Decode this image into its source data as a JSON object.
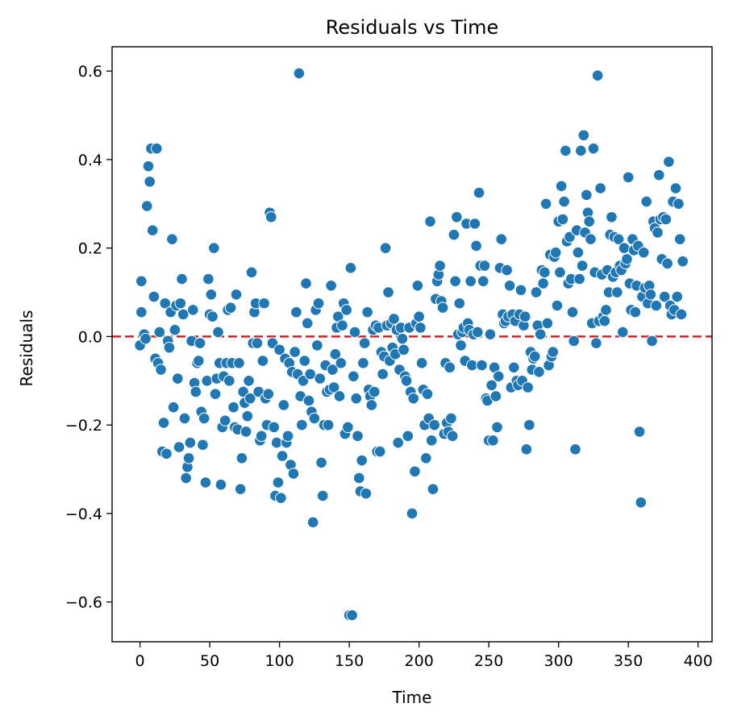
{
  "chart_data": {
    "type": "scatter",
    "title": "Residuals vs Time",
    "xlabel": "Time",
    "ylabel": "Residuals",
    "xlim": [
      -20,
      410
    ],
    "ylim": [
      -0.69,
      0.655
    ],
    "xticks": [
      0,
      50,
      100,
      150,
      200,
      250,
      300,
      350,
      400
    ],
    "xtick_labels": [
      "0",
      "50",
      "100",
      "150",
      "200",
      "250",
      "300",
      "350",
      "400"
    ],
    "yticks": [
      -0.6,
      -0.4,
      -0.2,
      0.0,
      0.2,
      0.4,
      0.6
    ],
    "ytick_labels": [
      "−0.6",
      "−0.4",
      "−0.2",
      "0.0",
      "0.2",
      "0.4",
      "0.6"
    ],
    "grid": false,
    "point_color": "#1f77b4",
    "reference_line": {
      "y": 0,
      "color": "#e31a1c",
      "style": "dashed"
    },
    "points": [
      [
        0,
        -0.02
      ],
      [
        1,
        0.055
      ],
      [
        1,
        0.125
      ],
      [
        3,
        0.005
      ],
      [
        4,
        -0.005
      ],
      [
        5,
        0.295
      ],
      [
        6,
        0.385
      ],
      [
        7,
        0.35
      ],
      [
        8,
        0.425
      ],
      [
        9,
        0.24
      ],
      [
        10,
        0.09
      ],
      [
        11,
        -0.05
      ],
      [
        12,
        0.425
      ],
      [
        13,
        -0.06
      ],
      [
        14,
        0.01
      ],
      [
        15,
        -0.075
      ],
      [
        16,
        -0.26
      ],
      [
        17,
        -0.195
      ],
      [
        18,
        0.075
      ],
      [
        19,
        -0.265
      ],
      [
        20,
        -0.01
      ],
      [
        21,
        -0.025
      ],
      [
        22,
        0.055
      ],
      [
        23,
        0.22
      ],
      [
        24,
        -0.16
      ],
      [
        25,
        0.015
      ],
      [
        26,
        0.07
      ],
      [
        27,
        -0.095
      ],
      [
        28,
        -0.25
      ],
      [
        29,
        0.075
      ],
      [
        30,
        0.13
      ],
      [
        31,
        0.05
      ],
      [
        32,
        -0.185
      ],
      [
        33,
        -0.32
      ],
      [
        34,
        -0.295
      ],
      [
        35,
        -0.275
      ],
      [
        36,
        -0.24
      ],
      [
        37,
        -0.01
      ],
      [
        38,
        0.06
      ],
      [
        39,
        -0.105
      ],
      [
        40,
        -0.125
      ],
      [
        41,
        -0.06
      ],
      [
        42,
        -0.055
      ],
      [
        43,
        -0.015
      ],
      [
        44,
        -0.17
      ],
      [
        45,
        -0.245
      ],
      [
        46,
        -0.185
      ],
      [
        47,
        -0.33
      ],
      [
        48,
        -0.1
      ],
      [
        49,
        0.13
      ],
      [
        50,
        0.05
      ],
      [
        51,
        0.095
      ],
      [
        52,
        0.045
      ],
      [
        53,
        0.2
      ],
      [
        54,
        -0.13
      ],
      [
        55,
        -0.095
      ],
      [
        56,
        0.01
      ],
      [
        57,
        -0.06
      ],
      [
        58,
        -0.335
      ],
      [
        59,
        -0.205
      ],
      [
        60,
        -0.09
      ],
      [
        61,
        -0.19
      ],
      [
        62,
        -0.06
      ],
      [
        63,
        0.06
      ],
      [
        64,
        -0.1
      ],
      [
        65,
        0.065
      ],
      [
        66,
        -0.06
      ],
      [
        67,
        -0.16
      ],
      [
        68,
        -0.205
      ],
      [
        69,
        0.095
      ],
      [
        70,
        -0.21
      ],
      [
        71,
        -0.06
      ],
      [
        72,
        -0.345
      ],
      [
        73,
        -0.275
      ],
      [
        74,
        -0.125
      ],
      [
        75,
        -0.15
      ],
      [
        76,
        -0.215
      ],
      [
        77,
        -0.18
      ],
      [
        78,
        -0.1
      ],
      [
        79,
        -0.14
      ],
      [
        80,
        0.145
      ],
      [
        81,
        -0.015
      ],
      [
        82,
        0.055
      ],
      [
        83,
        0.075
      ],
      [
        84,
        -0.015
      ],
      [
        85,
        -0.125
      ],
      [
        86,
        -0.235
      ],
      [
        87,
        -0.225
      ],
      [
        88,
        -0.055
      ],
      [
        89,
        0.075
      ],
      [
        90,
        -0.14
      ],
      [
        91,
        -0.2
      ],
      [
        92,
        -0.13
      ],
      [
        93,
        0.28
      ],
      [
        94,
        0.27
      ],
      [
        95,
        -0.015
      ],
      [
        96,
        -0.205
      ],
      [
        97,
        -0.36
      ],
      [
        98,
        -0.24
      ],
      [
        99,
        -0.33
      ],
      [
        100,
        -0.03
      ],
      [
        101,
        -0.365
      ],
      [
        102,
        -0.27
      ],
      [
        103,
        -0.155
      ],
      [
        104,
        -0.05
      ],
      [
        105,
        -0.24
      ],
      [
        106,
        -0.225
      ],
      [
        107,
        -0.06
      ],
      [
        108,
        -0.29
      ],
      [
        109,
        -0.08
      ],
      [
        110,
        -0.31
      ],
      [
        111,
        -0.035
      ],
      [
        112,
        0.055
      ],
      [
        113,
        -0.085
      ],
      [
        114,
        0.595
      ],
      [
        115,
        -0.135
      ],
      [
        116,
        -0.2
      ],
      [
        117,
        -0.1
      ],
      [
        118,
        -0.055
      ],
      [
        119,
        0.12
      ],
      [
        120,
        0.03
      ],
      [
        121,
        -0.145
      ],
      [
        122,
        -0.085
      ],
      [
        123,
        -0.17
      ],
      [
        124,
        -0.42
      ],
      [
        125,
        -0.185
      ],
      [
        126,
        0.06
      ],
      [
        127,
        -0.02
      ],
      [
        128,
        0.075
      ],
      [
        129,
        -0.095
      ],
      [
        130,
        -0.285
      ],
      [
        131,
        -0.36
      ],
      [
        132,
        -0.2
      ],
      [
        133,
        -0.065
      ],
      [
        134,
        -0.125
      ],
      [
        135,
        -0.2
      ],
      [
        136,
        -0.12
      ],
      [
        137,
        0.115
      ],
      [
        138,
        -0.075
      ],
      [
        139,
        -0.115
      ],
      [
        140,
        -0.04
      ],
      [
        141,
        0.02
      ],
      [
        142,
        0.045
      ],
      [
        143,
        -0.135
      ],
      [
        144,
        -0.06
      ],
      [
        145,
        0.025
      ],
      [
        146,
        0.075
      ],
      [
        147,
        -0.22
      ],
      [
        148,
        0.06
      ],
      [
        149,
        -0.205
      ],
      [
        150,
        -0.63
      ],
      [
        151,
        0.155
      ],
      [
        152,
        -0.63
      ],
      [
        153,
        -0.09
      ],
      [
        154,
        0.01
      ],
      [
        155,
        -0.14
      ],
      [
        156,
        -0.225
      ],
      [
        157,
        -0.32
      ],
      [
        158,
        -0.35
      ],
      [
        159,
        -0.28
      ],
      [
        160,
        -0.06
      ],
      [
        161,
        -0.015
      ],
      [
        162,
        -0.355
      ],
      [
        163,
        0.055
      ],
      [
        164,
        -0.12
      ],
      [
        165,
        -0.135
      ],
      [
        166,
        -0.155
      ],
      [
        167,
        0.015
      ],
      [
        168,
        -0.125
      ],
      [
        169,
        0.025
      ],
      [
        170,
        -0.26
      ],
      [
        171,
        0.02
      ],
      [
        172,
        -0.26
      ],
      [
        173,
        -0.035
      ],
      [
        174,
        -0.085
      ],
      [
        175,
        -0.045
      ],
      [
        176,
        0.2
      ],
      [
        177,
        0.025
      ],
      [
        178,
        0.1
      ],
      [
        179,
        -0.055
      ],
      [
        180,
        0.03
      ],
      [
        181,
        -0.025
      ],
      [
        182,
        0.04
      ],
      [
        183,
        -0.04
      ],
      [
        184,
        0.015
      ],
      [
        185,
        -0.24
      ],
      [
        186,
        -0.075
      ],
      [
        187,
        0.02
      ],
      [
        188,
        -0.005
      ],
      [
        189,
        -0.03
      ],
      [
        190,
        -0.09
      ],
      [
        191,
        -0.1
      ],
      [
        192,
        -0.225
      ],
      [
        193,
        0.02
      ],
      [
        194,
        -0.125
      ],
      [
        195,
        -0.4
      ],
      [
        196,
        -0.14
      ],
      [
        197,
        -0.305
      ],
      [
        198,
        0.03
      ],
      [
        199,
        0.115
      ],
      [
        200,
        0.045
      ],
      [
        201,
        0.02
      ],
      [
        202,
        -0.06
      ],
      [
        203,
        -0.12
      ],
      [
        204,
        -0.2
      ],
      [
        205,
        -0.275
      ],
      [
        206,
        -0.13
      ],
      [
        207,
        -0.185
      ],
      [
        208,
        0.26
      ],
      [
        209,
        -0.235
      ],
      [
        210,
        -0.345
      ],
      [
        211,
        -0.2
      ],
      [
        212,
        0.085
      ],
      [
        213,
        0.125
      ],
      [
        214,
        0.14
      ],
      [
        215,
        0.16
      ],
      [
        216,
        0.08
      ],
      [
        217,
        0.065
      ],
      [
        218,
        -0.22
      ],
      [
        219,
        -0.06
      ],
      [
        220,
        -0.195
      ],
      [
        221,
        -0.215
      ],
      [
        222,
        -0.07
      ],
      [
        223,
        -0.185
      ],
      [
        224,
        -0.225
      ],
      [
        225,
        0.23
      ],
      [
        226,
        0.125
      ],
      [
        227,
        0.27
      ],
      [
        228,
        0.005
      ],
      [
        229,
        0.075
      ],
      [
        230,
        -0.02
      ],
      [
        231,
        0.01
      ],
      [
        232,
        0.02
      ],
      [
        233,
        -0.055
      ],
      [
        234,
        0.255
      ],
      [
        235,
        0.03
      ],
      [
        236,
        0.015
      ],
      [
        237,
        0.125
      ],
      [
        238,
        -0.065
      ],
      [
        239,
        0.005
      ],
      [
        240,
        0.255
      ],
      [
        241,
        0.205
      ],
      [
        242,
        0.01
      ],
      [
        243,
        0.325
      ],
      [
        244,
        0.16
      ],
      [
        245,
        -0.065
      ],
      [
        246,
        0.125
      ],
      [
        247,
        0.16
      ],
      [
        248,
        -0.14
      ],
      [
        249,
        -0.145
      ],
      [
        250,
        -0.235
      ],
      [
        251,
        0.005
      ],
      [
        252,
        -0.11
      ],
      [
        253,
        -0.235
      ],
      [
        254,
        -0.07
      ],
      [
        255,
        -0.135
      ],
      [
        256,
        -0.205
      ],
      [
        257,
        -0.09
      ],
      [
        258,
        0.155
      ],
      [
        259,
        0.22
      ],
      [
        260,
        0.05
      ],
      [
        261,
        0.03
      ],
      [
        262,
        0.035
      ],
      [
        263,
        0.15
      ],
      [
        264,
        0.045
      ],
      [
        265,
        0.115
      ],
      [
        266,
        -0.115
      ],
      [
        267,
        0.05
      ],
      [
        268,
        -0.07
      ],
      [
        269,
        0.035
      ],
      [
        270,
        -0.1
      ],
      [
        271,
        -0.11
      ],
      [
        272,
        0.05
      ],
      [
        273,
        0.105
      ],
      [
        274,
        -0.1
      ],
      [
        275,
        0.025
      ],
      [
        276,
        0.045
      ],
      [
        277,
        -0.255
      ],
      [
        278,
        -0.115
      ],
      [
        279,
        -0.2
      ],
      [
        280,
        -0.035
      ],
      [
        281,
        -0.075
      ],
      [
        282,
        -0.05
      ],
      [
        283,
        -0.045
      ],
      [
        284,
        0.1
      ],
      [
        285,
        0.025
      ],
      [
        286,
        -0.08
      ],
      [
        287,
        0.005
      ],
      [
        288,
        0.15
      ],
      [
        289,
        0.12
      ],
      [
        290,
        0.145
      ],
      [
        291,
        0.3
      ],
      [
        292,
        0.03
      ],
      [
        293,
        -0.065
      ],
      [
        294,
        0.185
      ],
      [
        295,
        -0.045
      ],
      [
        296,
        -0.035
      ],
      [
        297,
        0.18
      ],
      [
        298,
        0.19
      ],
      [
        299,
        0.07
      ],
      [
        300,
        0.26
      ],
      [
        301,
        0.145
      ],
      [
        302,
        0.34
      ],
      [
        303,
        0.265
      ],
      [
        304,
        0.305
      ],
      [
        305,
        0.42
      ],
      [
        306,
        0.215
      ],
      [
        307,
        0.12
      ],
      [
        308,
        0.225
      ],
      [
        309,
        0.13
      ],
      [
        310,
        0.055
      ],
      [
        311,
        -0.01
      ],
      [
        312,
        -0.255
      ],
      [
        313,
        0.24
      ],
      [
        314,
        0.19
      ],
      [
        315,
        0.13
      ],
      [
        316,
        0.42
      ],
      [
        317,
        0.16
      ],
      [
        318,
        0.455
      ],
      [
        319,
        0.235
      ],
      [
        320,
        0.32
      ],
      [
        321,
        0.28
      ],
      [
        322,
        0.26
      ],
      [
        323,
        0.22
      ],
      [
        324,
        0.03
      ],
      [
        325,
        0.425
      ],
      [
        326,
        0.145
      ],
      [
        327,
        -0.015
      ],
      [
        328,
        0.59
      ],
      [
        329,
        0.035
      ],
      [
        330,
        0.335
      ],
      [
        331,
        0.14
      ],
      [
        332,
        0.045
      ],
      [
        333,
        0.035
      ],
      [
        334,
        0.06
      ],
      [
        335,
        0.15
      ],
      [
        336,
        0.1
      ],
      [
        337,
        0.23
      ],
      [
        338,
        0.27
      ],
      [
        339,
        0.135
      ],
      [
        340,
        0.225
      ],
      [
        341,
        0.145
      ],
      [
        342,
        0.1
      ],
      [
        343,
        0.22
      ],
      [
        344,
        0.16
      ],
      [
        345,
        0.15
      ],
      [
        346,
        0.01
      ],
      [
        347,
        0.2
      ],
      [
        348,
        0.165
      ],
      [
        349,
        0.175
      ],
      [
        350,
        0.36
      ],
      [
        351,
        0.12
      ],
      [
        352,
        0.06
      ],
      [
        353,
        0.22
      ],
      [
        354,
        0.195
      ],
      [
        355,
        0.055
      ],
      [
        356,
        0.115
      ],
      [
        357,
        0.205
      ],
      [
        358,
        -0.215
      ],
      [
        359,
        -0.375
      ],
      [
        360,
        0.09
      ],
      [
        361,
        0.19
      ],
      [
        362,
        0.11
      ],
      [
        363,
        0.305
      ],
      [
        364,
        0.075
      ],
      [
        365,
        0.115
      ],
      [
        366,
        0.095
      ],
      [
        367,
        -0.01
      ],
      [
        368,
        0.26
      ],
      [
        369,
        0.245
      ],
      [
        370,
        0.07
      ],
      [
        371,
        0.235
      ],
      [
        372,
        0.365
      ],
      [
        373,
        0.265
      ],
      [
        374,
        0.175
      ],
      [
        375,
        0.27
      ],
      [
        376,
        0.09
      ],
      [
        377,
        0.265
      ],
      [
        378,
        0.165
      ],
      [
        379,
        0.395
      ],
      [
        380,
        0.07
      ],
      [
        381,
        0.05
      ],
      [
        382,
        0.305
      ],
      [
        383,
        0.06
      ],
      [
        384,
        0.335
      ],
      [
        385,
        0.09
      ],
      [
        386,
        0.3
      ],
      [
        387,
        0.22
      ],
      [
        388,
        0.05
      ],
      [
        389,
        0.17
      ]
    ]
  }
}
